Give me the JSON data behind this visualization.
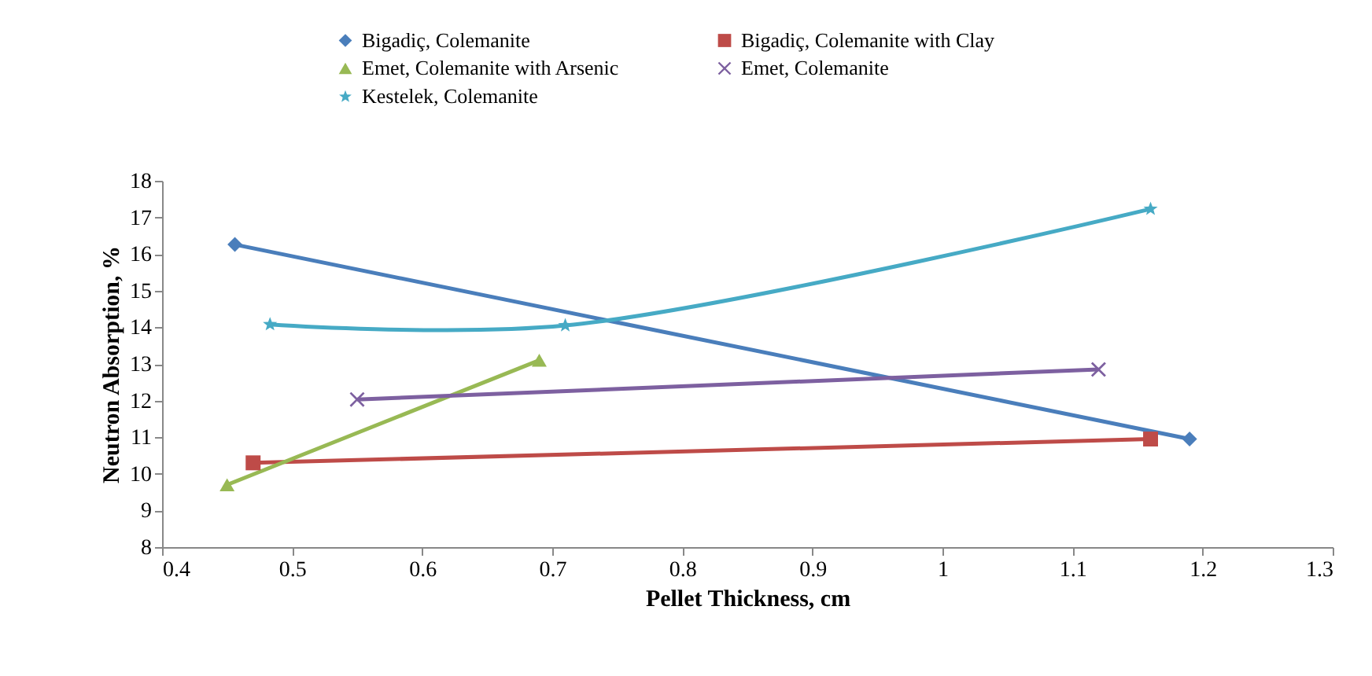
{
  "chart_data": {
    "type": "line",
    "xlabel": "Pellet Thickness, cm",
    "ylabel": "Neutron Absorption, %",
    "xlim": [
      0.4,
      1.3
    ],
    "xticks": [
      0.4,
      0.5,
      0.6,
      0.7,
      0.8,
      0.9,
      1,
      1.1,
      1.2,
      1.3
    ],
    "ylim": [
      8,
      18
    ],
    "yticks": [
      8,
      9,
      10,
      11,
      12,
      13,
      14,
      15,
      16,
      17,
      18
    ],
    "grid": false,
    "legend": "top",
    "series": [
      {
        "name": "Bigadiç, Colemanite",
        "color": "#4a7ebb",
        "marker": "diamond",
        "x": [
          0.456,
          1.19
        ],
        "values": [
          16.26,
          10.95
        ]
      },
      {
        "name": "Bigadiç, Colemanite with Clay",
        "color": "#be4b48",
        "marker": "square",
        "x": [
          0.47,
          1.16
        ],
        "values": [
          10.3,
          10.95
        ]
      },
      {
        "name": "Emet, Colemanite with Arsenic",
        "color": "#98b954",
        "marker": "triangle",
        "x": [
          0.45,
          0.69
        ],
        "values": [
          9.7,
          13.1
        ]
      },
      {
        "name": "Emet, Colemanite",
        "color": "#7d60a0",
        "marker": "cross",
        "x": [
          0.55,
          1.12
        ],
        "values": [
          12.03,
          12.85
        ]
      },
      {
        "name": "Kestelek, Colemanite",
        "color": "#46aac5",
        "marker": "star",
        "x": [
          0.483,
          0.71,
          1.16
        ],
        "values": [
          14.08,
          14.05,
          17.23
        ]
      }
    ]
  }
}
